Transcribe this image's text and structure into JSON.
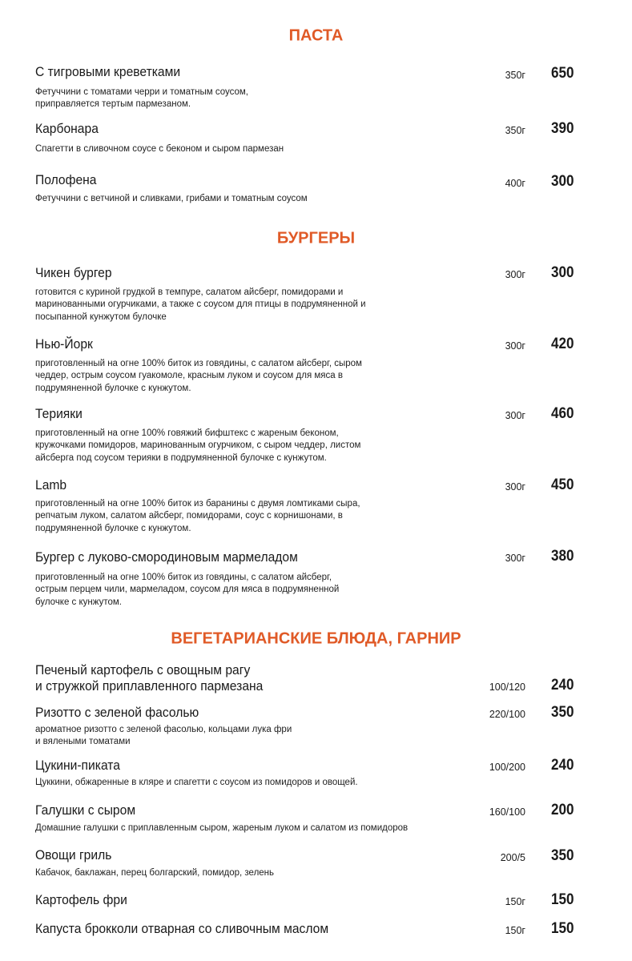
{
  "colors": {
    "accent": "#e05a27",
    "text": "#1a1a1a"
  },
  "sections": [
    {
      "title": "ПАСТА",
      "items": [
        {
          "name": "С тигровыми креветками",
          "desc": "Фетуччини с томатами черри и томатным соусом,\nприправляется тертым пармезаном.",
          "weight": "350г",
          "price": "650"
        },
        {
          "name": "Карбонара",
          "desc": "Спагетти в сливочном соусе с беконом и сыром пармезан",
          "weight": "350г",
          "price": "390"
        },
        {
          "name": "Полофена",
          "desc": "Фетуччини с ветчиной и сливками, грибами и томатным соусом",
          "weight": "400г",
          "price": "300"
        }
      ]
    },
    {
      "title": "БУРГЕРЫ",
      "items": [
        {
          "name": "Чикен бургер",
          "desc": "готовится  с куриной грудкой  в темпуре, салатом айсберг, помидорами и\nмаринованными огурчиками, а также с соусом для птицы в подрумяненной и\nпосыпанной кунжутом булочке",
          "weight": "300г",
          "price": "300"
        },
        {
          "name": "Нью-Йорк",
          "desc": "приготовленный на огне 100% биток из говядины, с  салатом айсберг, сыром\nчеддер, острым соусом гуакомоле, красным луком и соусом для мяса в\nподрумяненной булочке с кунжутом.",
          "weight": "300г",
          "price": "420"
        },
        {
          "name": "Терияки",
          "desc": "приготовленный на огне 100% говяжий бифштекс с жареным беконом,\nкружочками помидоров, маринованным огурчиком, с сыром чеддер, листом\nайсберга под соусом терияки  в подрумяненной булочке с кунжутом.",
          "weight": "300г",
          "price": "460"
        },
        {
          "name": "Lamb",
          "desc": "приготовленный на огне 100%  биток из баранины с двумя ломтиками сыра,\nрепчатым луком, салатом айсберг, помидорами,  соус с корнишонами, в\nподрумяненной булочке с кунжутом.",
          "weight": "300г",
          "price": "450"
        },
        {
          "name": "Бургер с луково-смородиновым мармеладом",
          "desc": "приготовленный на огне 100% биток из говядины, с салатом айсберг,\nострым перцем чили, мармеладом, соусом для мяса в подрумяненной\nбулочке с кунжутом.",
          "weight": "300г",
          "price": "380"
        }
      ]
    },
    {
      "title": "ВЕГЕТАРИАНСКИЕ БЛЮДА, ГАРНИР",
      "items": [
        {
          "name": "Печеный картофель с овощным рагу\nи стружкой приплавленного  пармезана",
          "desc": "",
          "weight": "100/120",
          "price": "240"
        },
        {
          "name": "Ризотто с зеленой фасолью",
          "desc": "ароматное ризотто с зеленой фасолью, кольцами лука фри\nи вялеными томатами",
          "weight": "220/100",
          "price": "350"
        },
        {
          "name": "Цукини-пиката",
          "desc": "Цуккини, обжаренные в кляре и спагетти с соусом из помидоров и овощей.",
          "weight": "100/200",
          "price": "240"
        },
        {
          "name": "Галушки с сыром",
          "desc": "Домашние галушки с приплавленным сыром, жареным луком и салатом из помидоров",
          "weight": "160/100",
          "price": "200"
        },
        {
          "name": "Овощи гриль",
          "desc": "Кабачок, баклажан, перец болгарский, помидор, зелень",
          "weight": "200/5",
          "price": "350"
        },
        {
          "name": "Картофель фри",
          "desc": "",
          "weight": "150г",
          "price": "150"
        },
        {
          "name": "Капуста брокколи отварная со сливочным маслом",
          "desc": "",
          "weight": "150г",
          "price": "150"
        }
      ]
    }
  ]
}
